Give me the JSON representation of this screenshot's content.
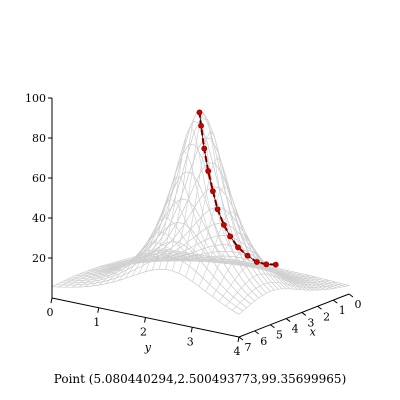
{
  "chart_data": {
    "type": "surface3d",
    "surface": {
      "peak": {
        "x": 5,
        "y": 2.5,
        "z": 100
      }
    },
    "axes": {
      "x": {
        "label": "x",
        "range": [
          0,
          7
        ],
        "ticks": [
          0,
          1,
          2,
          3,
          4,
          5,
          6,
          7
        ]
      },
      "y": {
        "label": "y",
        "range": [
          0,
          4
        ],
        "ticks": [
          0,
          1,
          2,
          3,
          4
        ]
      },
      "z": {
        "label": "",
        "range": [
          0,
          100
        ],
        "ticks": [
          20,
          40,
          60,
          80,
          100
        ]
      }
    },
    "path_series": {
      "color": "#cc0000",
      "points": [
        {
          "x": 0.2,
          "y": 2.5,
          "z": 8
        },
        {
          "x": 0.8,
          "y": 2.5,
          "z": 10
        },
        {
          "x": 1.4,
          "y": 2.5,
          "z": 13
        },
        {
          "x": 2.0,
          "y": 2.5,
          "z": 18
        },
        {
          "x": 2.6,
          "y": 2.5,
          "z": 24
        },
        {
          "x": 3.1,
          "y": 2.5,
          "z": 31
        },
        {
          "x": 3.5,
          "y": 2.5,
          "z": 38
        },
        {
          "x": 3.9,
          "y": 2.5,
          "z": 47
        },
        {
          "x": 4.2,
          "y": 2.5,
          "z": 57
        },
        {
          "x": 4.5,
          "y": 2.5,
          "z": 68
        },
        {
          "x": 4.75,
          "y": 2.5,
          "z": 80
        },
        {
          "x": 4.95,
          "y": 2.5,
          "z": 92
        },
        {
          "x": 5.05,
          "y": 2.5,
          "z": 99
        }
      ]
    }
  },
  "status": {
    "point_readout": "Point (5.080440294,2.500493773,99.35699965)"
  }
}
